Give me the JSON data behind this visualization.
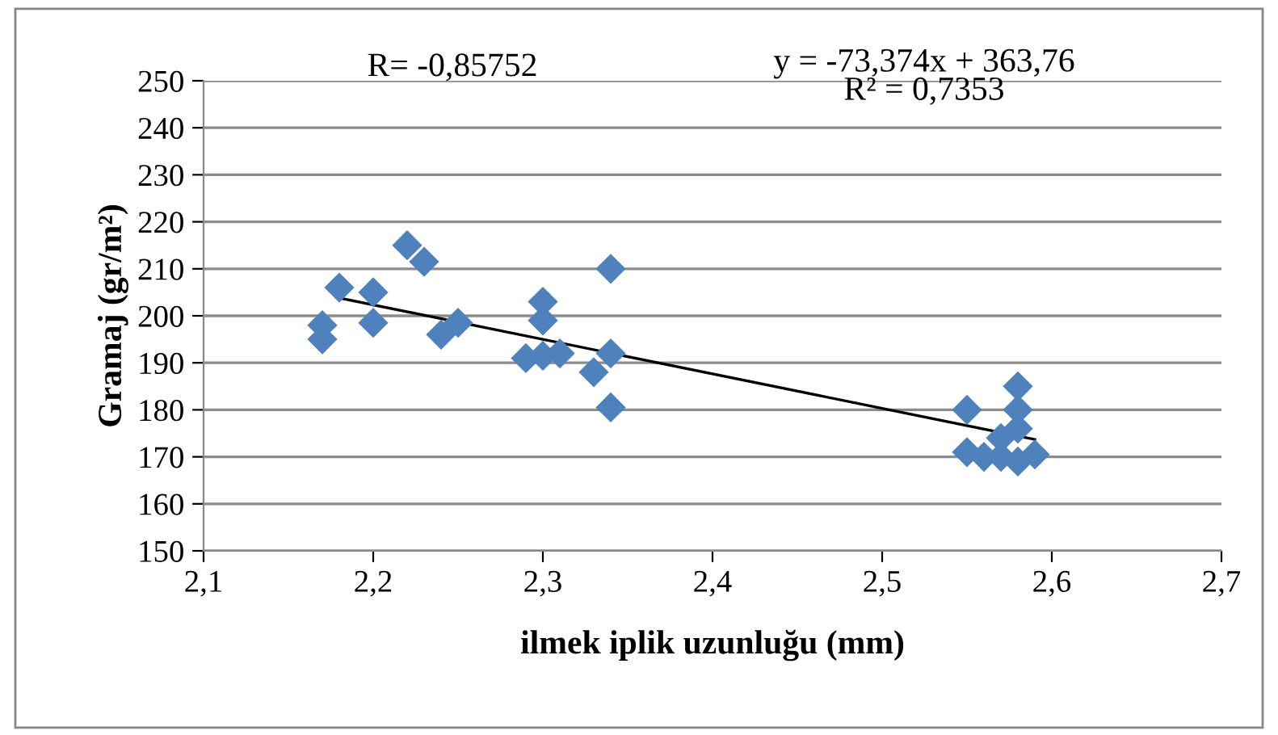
{
  "chart_data": {
    "type": "scatter",
    "xlabel": "ilmek iplik uzunluğu (mm)",
    "ylabel": "Gramaj (gr/m²)",
    "annotations": [
      "R= -0,85752",
      "y = -73,374x + 363,76\nR² = 0,7353"
    ],
    "series": [
      {
        "color": "#4f81bd",
        "marker": "diamond",
        "x": [
          2.17,
          2.17,
          2.18,
          2.2,
          2.2,
          2.22,
          2.23,
          2.24,
          2.25,
          2.29,
          2.3,
          2.3,
          2.31,
          2.3,
          2.33,
          2.34,
          2.34,
          2.34,
          2.55,
          2.55,
          2.56,
          2.57,
          2.57,
          2.58,
          2.58,
          2.58,
          2.58,
          2.59
        ],
        "values": [
          198,
          195,
          206,
          205,
          198.5,
          215,
          211.5,
          196,
          198.5,
          191,
          203,
          199,
          192,
          191.5,
          188,
          210,
          192,
          180.5,
          180,
          171,
          170,
          170,
          174,
          185,
          180,
          176,
          169,
          170.5
        ]
      },
      {
        "type": "line",
        "color": "#000000",
        "x": [
          2.18,
          2.59
        ],
        "values": [
          203.8,
          173.7
        ]
      }
    ],
    "xlim": [
      2.1,
      2.7
    ],
    "xticks": [
      {
        "value": 2.1,
        "label": "2,1"
      },
      {
        "value": 2.2,
        "label": "2,2"
      },
      {
        "value": 2.3,
        "label": "2,3"
      },
      {
        "value": 2.4,
        "label": "2,4"
      },
      {
        "value": 2.5,
        "label": "2,5"
      },
      {
        "value": 2.6,
        "label": "2,6"
      },
      {
        "value": 2.7,
        "label": "2,7"
      }
    ],
    "ylim": [
      150,
      250
    ],
    "yticks": [
      150,
      160,
      170,
      180,
      190,
      200,
      210,
      220,
      230,
      240,
      250
    ],
    "grid": "y"
  }
}
